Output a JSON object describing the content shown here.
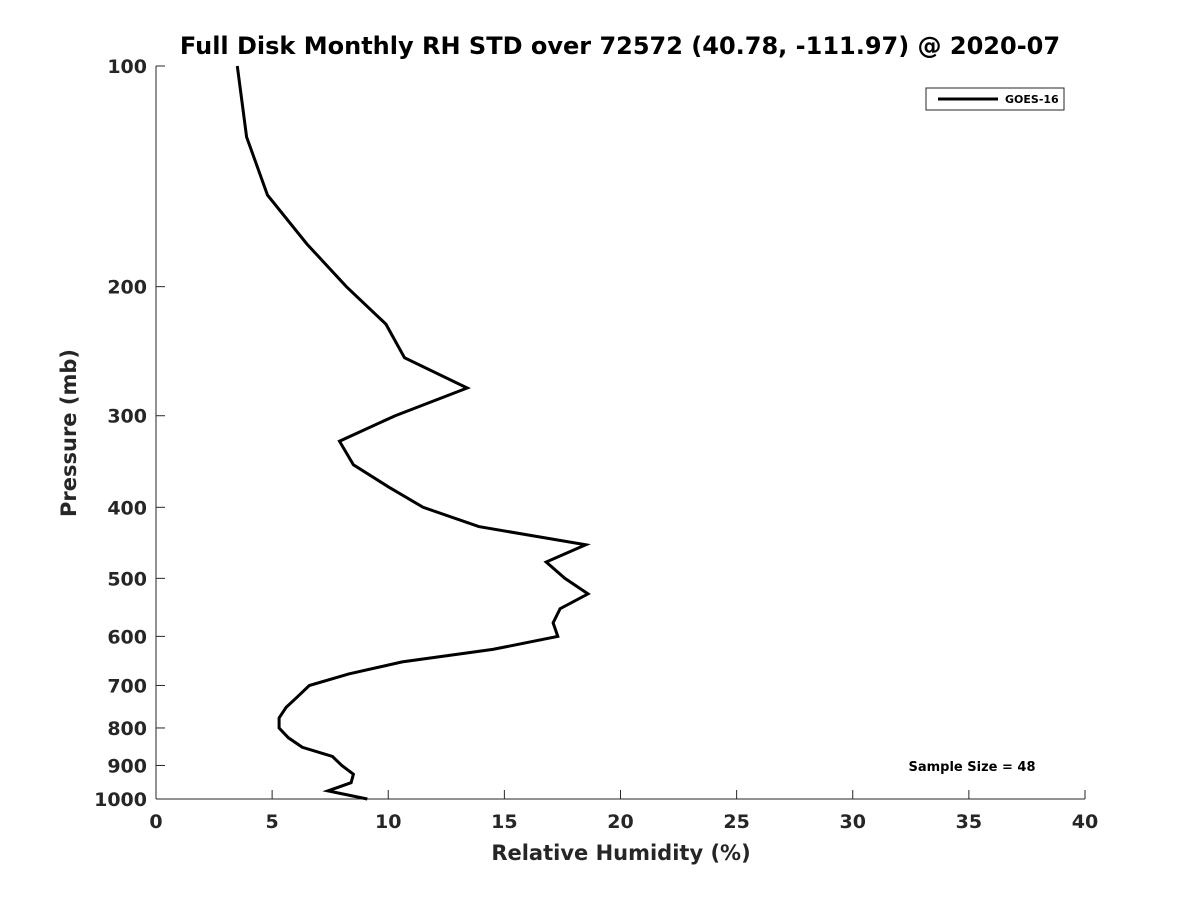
{
  "chart_data": {
    "type": "line",
    "title": "Full Disk Monthly RH STD over 72572 (40.78, -111.97) @ 2020-07",
    "xlabel": "Relative Humidity (%)",
    "ylabel": "Pressure (mb)",
    "xlim": [
      0,
      40
    ],
    "ylim": [
      100,
      1000
    ],
    "y_scale": "log",
    "y_reversed": true,
    "x_ticks": [
      0,
      5,
      10,
      15,
      20,
      25,
      30,
      35,
      40
    ],
    "y_ticks": [
      100,
      200,
      300,
      400,
      500,
      600,
      700,
      800,
      900,
      1000
    ],
    "grid": false,
    "legend": {
      "position": "top-right",
      "entries": [
        "GOES-16"
      ]
    },
    "annotations": [
      {
        "text": "Sample Size = 48",
        "position": "bottom-right"
      }
    ],
    "series": [
      {
        "name": "GOES-16",
        "color": "#000000",
        "points": [
          [
            3.5,
            100
          ],
          [
            3.9,
            125
          ],
          [
            4.8,
            150
          ],
          [
            6.5,
            175
          ],
          [
            8.2,
            200
          ],
          [
            9.9,
            225
          ],
          [
            10.7,
            250
          ],
          [
            13.4,
            275
          ],
          [
            10.3,
            300
          ],
          [
            7.9,
            325
          ],
          [
            8.5,
            350
          ],
          [
            10.0,
            375
          ],
          [
            11.5,
            400
          ],
          [
            13.9,
            425
          ],
          [
            18.5,
            450
          ],
          [
            16.8,
            475
          ],
          [
            17.6,
            500
          ],
          [
            18.6,
            525
          ],
          [
            17.4,
            550
          ],
          [
            17.1,
            575
          ],
          [
            17.3,
            600
          ],
          [
            14.5,
            625
          ],
          [
            10.6,
            650
          ],
          [
            8.3,
            675
          ],
          [
            6.6,
            700
          ],
          [
            6.1,
            725
          ],
          [
            5.6,
            750
          ],
          [
            5.3,
            775
          ],
          [
            5.3,
            800
          ],
          [
            5.7,
            825
          ],
          [
            6.3,
            850
          ],
          [
            7.6,
            875
          ],
          [
            8.0,
            900
          ],
          [
            8.5,
            925
          ],
          [
            8.4,
            950
          ],
          [
            7.4,
            975
          ],
          [
            9.1,
            1000
          ]
        ]
      }
    ]
  }
}
